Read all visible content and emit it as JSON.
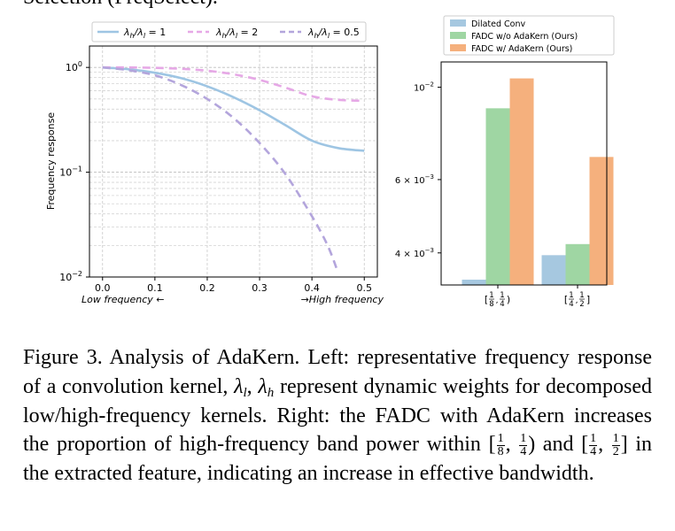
{
  "header_fragment": "Selection (FreqSelect).",
  "chart_data": [
    {
      "type": "line",
      "title": "",
      "xlabel_left": "Low frequency ←",
      "xlabel_right": "→High frequency",
      "ylabel": "Frequency response",
      "yscale": "log",
      "ylim": [
        0.01,
        1.6
      ],
      "xlim": [
        -0.025,
        0.525
      ],
      "xticks": [
        0.0,
        0.1,
        0.2,
        0.3,
        0.4,
        0.5
      ],
      "xtick_labels": [
        "0.0",
        "0.1",
        "0.2",
        "0.3",
        "0.4",
        "0.5"
      ],
      "ytick_labels": [
        {
          "base": "10",
          "exp": "0"
        },
        {
          "base": "10",
          "exp": "−1"
        },
        {
          "base": "10",
          "exp": "−2"
        }
      ],
      "legend": "top",
      "series": [
        {
          "name": "λ_h/λ_l = 1",
          "legend_label": "λh/λl = 1",
          "color": "#9ec5e3",
          "dash": "solid",
          "x": [
            0.0,
            0.05,
            0.1,
            0.15,
            0.2,
            0.25,
            0.3,
            0.35,
            0.4,
            0.45,
            0.5
          ],
          "y": [
            1.0,
            0.96,
            0.89,
            0.79,
            0.66,
            0.52,
            0.39,
            0.28,
            0.2,
            0.17,
            0.16
          ]
        },
        {
          "name": "λ_h/λ_l = 2",
          "legend_label": "λh/λl = 2",
          "color": "#e6a8e6",
          "dash": "dashed",
          "x": [
            0.0,
            0.05,
            0.1,
            0.15,
            0.2,
            0.25,
            0.3,
            0.35,
            0.4,
            0.45,
            0.5
          ],
          "y": [
            1.0,
            1.0,
            0.99,
            0.97,
            0.93,
            0.86,
            0.76,
            0.64,
            0.53,
            0.49,
            0.48
          ]
        },
        {
          "name": "λ_h/λ_l = 0.5",
          "legend_label": "λh/λl = 0.5",
          "color": "#b3a5dc",
          "dash": "dashed",
          "x": [
            0.0,
            0.05,
            0.1,
            0.15,
            0.2,
            0.25,
            0.3,
            0.35,
            0.4,
            0.43,
            0.45
          ],
          "y": [
            1.0,
            0.94,
            0.84,
            0.68,
            0.5,
            0.33,
            0.19,
            0.095,
            0.038,
            0.02,
            0.011
          ]
        }
      ]
    },
    {
      "type": "bar",
      "title": "",
      "xlabel": "",
      "ylabel": "",
      "yscale": "log",
      "ylim": [
        0.00335,
        0.0115
      ],
      "categories": [
        {
          "l1": "1",
          "l2": "8",
          "r1": "1",
          "r2": "4",
          "close": ")"
        },
        {
          "l1": "1",
          "l2": "4",
          "r1": "1",
          "r2": "2",
          "close": "]"
        }
      ],
      "ytick_labels": [
        {
          "mant": "10",
          "exp": "−2",
          "value": 0.01
        },
        {
          "mant": "6 × 10",
          "exp": "−3",
          "value": 0.006
        },
        {
          "mant": "4 × 10",
          "exp": "−3",
          "value": 0.004
        }
      ],
      "legend": "top",
      "series": [
        {
          "name": "Dilated Conv",
          "color": "#a6c8e0",
          "values": [
            0.00345,
            0.00395
          ]
        },
        {
          "name": "FADC w/o AdaKern (Ours)",
          "color": "#9fd6a3",
          "values": [
            0.0089,
            0.0042
          ]
        },
        {
          "name": "FADC w/ AdaKern (Ours)",
          "color": "#f5b07d",
          "values": [
            0.0105,
            0.0068
          ]
        }
      ]
    }
  ],
  "caption": {
    "p1": "Figure 3. Analysis of AdaKern. Left: representative frequency response of a convolution kernel, ",
    "lam": "λ",
    "sub_l": "l",
    "comma": ", ",
    "sub_h": "h",
    "p2": " represent dynamic weights for decomposed low/high-frequency kernels.  Right: the FADC with AdaKern increases the proportion of high-frequency band power within ",
    "f1_num": "1",
    "f1_den": "8",
    "f2_num": "1",
    "f2_den": "4",
    "mid": " and ",
    "f3_num": "1",
    "f3_den": "4",
    "f4_num": "1",
    "f4_den": "2",
    "p3": " in the extracted feature, indicating an increase in effective bandwidth."
  }
}
